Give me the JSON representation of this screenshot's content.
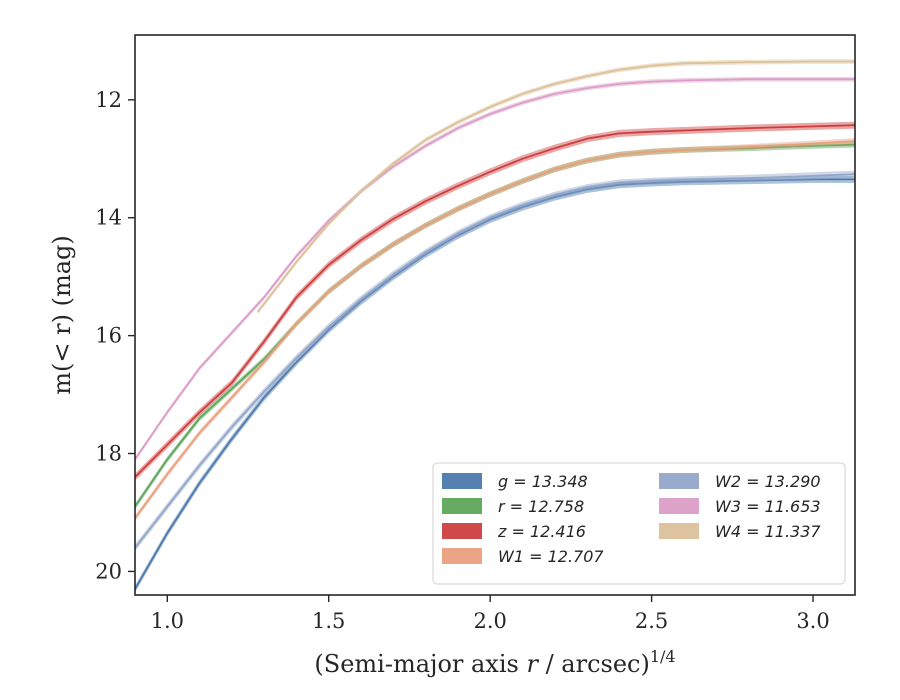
{
  "chart_data": {
    "type": "line",
    "xlabel_main": "(Semi-major axis ",
    "xlabel_var": "r",
    "xlabel_tail": " / arcsec)",
    "xlabel_sup": "1/4",
    "ylabel": "m(< r) (mag)",
    "xlim": [
      0.9,
      3.13
    ],
    "ylim": [
      20.4,
      10.9
    ],
    "y_inverted": true,
    "xticks": [
      1.0,
      1.5,
      2.0,
      2.5,
      3.0
    ],
    "xtick_labels": [
      "1.0",
      "1.5",
      "2.0",
      "2.5",
      "3.0"
    ],
    "yticks": [
      12,
      14,
      16,
      18,
      20
    ],
    "ytick_labels": [
      "12",
      "14",
      "16",
      "18",
      "20"
    ],
    "grid": false,
    "legend_position": "lower-right",
    "series": [
      {
        "name": "g = 13.348",
        "color": "#4c7aad",
        "band_width": 0.12,
        "x": [
          0.9,
          1.0,
          1.1,
          1.2,
          1.3,
          1.4,
          1.5,
          1.6,
          1.7,
          1.8,
          1.9,
          2.0,
          2.1,
          2.2,
          2.3,
          2.4,
          2.5,
          2.6,
          2.8,
          3.0,
          3.13
        ],
        "y": [
          20.3,
          19.35,
          18.5,
          17.75,
          17.05,
          16.45,
          15.9,
          15.42,
          15.0,
          14.62,
          14.3,
          14.03,
          13.82,
          13.65,
          13.52,
          13.44,
          13.41,
          13.39,
          13.37,
          13.35,
          13.35
        ]
      },
      {
        "name": "r = 12.758",
        "color": "#5da75a",
        "band_width": 0.1,
        "x": [
          0.9,
          1.0,
          1.1,
          1.2,
          1.3,
          1.4,
          1.5,
          1.6,
          1.7,
          1.8,
          1.9,
          2.0,
          2.1,
          2.2,
          2.3,
          2.4,
          2.5,
          2.6,
          2.8,
          3.0,
          3.13
        ],
        "y": [
          18.9,
          18.1,
          17.4,
          16.9,
          16.4,
          15.8,
          15.25,
          14.82,
          14.45,
          14.13,
          13.85,
          13.6,
          13.38,
          13.18,
          13.03,
          12.93,
          12.88,
          12.85,
          12.82,
          12.78,
          12.76
        ]
      },
      {
        "name": "z = 12.416",
        "color": "#cc3f3f",
        "band_width": 0.12,
        "x": [
          0.9,
          1.0,
          1.1,
          1.2,
          1.3,
          1.4,
          1.5,
          1.6,
          1.7,
          1.8,
          1.9,
          2.0,
          2.1,
          2.2,
          2.3,
          2.4,
          2.5,
          2.6,
          2.8,
          3.0,
          3.13
        ],
        "y": [
          18.4,
          17.85,
          17.3,
          16.8,
          16.1,
          15.35,
          14.8,
          14.38,
          14.02,
          13.72,
          13.46,
          13.22,
          13.0,
          12.82,
          12.66,
          12.57,
          12.54,
          12.52,
          12.48,
          12.45,
          12.43
        ]
      },
      {
        "name": "W1 = 12.707",
        "color": "#e8a07f",
        "band_width": 0.1,
        "x": [
          0.9,
          1.0,
          1.1,
          1.2,
          1.3,
          1.4,
          1.5,
          1.6,
          1.7,
          1.8,
          1.9,
          2.0,
          2.1,
          2.2,
          2.3,
          2.4,
          2.5,
          2.6,
          2.8,
          3.0,
          3.13
        ],
        "y": [
          19.1,
          18.35,
          17.65,
          17.05,
          16.45,
          15.8,
          15.25,
          14.82,
          14.45,
          14.13,
          13.85,
          13.6,
          13.38,
          13.18,
          13.03,
          12.93,
          12.88,
          12.85,
          12.8,
          12.74,
          12.7
        ]
      },
      {
        "name": "W2 = 13.290",
        "color": "#93a6c9",
        "band_width": 0.12,
        "x": [
          0.9,
          1.0,
          1.1,
          1.2,
          1.3,
          1.4,
          1.5,
          1.6,
          1.7,
          1.8,
          1.9,
          2.0,
          2.1,
          2.2,
          2.3,
          2.4,
          2.5,
          2.6,
          2.8,
          3.0,
          3.13
        ],
        "y": [
          19.6,
          18.9,
          18.2,
          17.55,
          16.95,
          16.38,
          15.85,
          15.38,
          14.96,
          14.59,
          14.27,
          14.0,
          13.79,
          13.62,
          13.49,
          13.41,
          13.38,
          13.36,
          13.33,
          13.29,
          13.26
        ]
      },
      {
        "name": "W3 = 11.653",
        "color": "#dc9ec8",
        "band_width": 0.08,
        "x": [
          0.9,
          1.0,
          1.1,
          1.2,
          1.3,
          1.4,
          1.5,
          1.6,
          1.7,
          1.8,
          1.9,
          2.0,
          2.1,
          2.2,
          2.3,
          2.4,
          2.5,
          2.6,
          2.8,
          3.0,
          3.13
        ],
        "y": [
          18.1,
          17.3,
          16.55,
          15.95,
          15.35,
          14.65,
          14.05,
          13.55,
          13.13,
          12.78,
          12.48,
          12.24,
          12.05,
          11.9,
          11.8,
          11.73,
          11.69,
          11.67,
          11.65,
          11.65,
          11.65
        ]
      },
      {
        "name": "W4 = 11.337",
        "color": "#dcc199",
        "band_width": 0.08,
        "x": [
          1.28,
          1.4,
          1.5,
          1.6,
          1.7,
          1.8,
          1.9,
          2.0,
          2.1,
          2.2,
          2.3,
          2.4,
          2.5,
          2.6,
          2.8,
          3.0,
          3.13
        ],
        "y": [
          15.6,
          14.75,
          14.1,
          13.55,
          13.08,
          12.68,
          12.38,
          12.12,
          11.9,
          11.73,
          11.6,
          11.49,
          11.42,
          11.38,
          11.36,
          11.35,
          11.35
        ]
      }
    ]
  }
}
